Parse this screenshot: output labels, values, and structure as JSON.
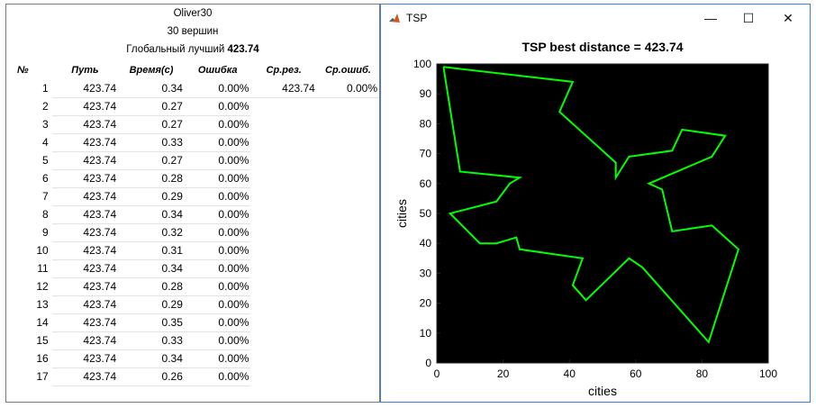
{
  "table_panel": {
    "instance_name": "Oliver30",
    "vertices": "30 вершин",
    "global_best_prefix": "Глобальный лучший ",
    "global_best_value": "423.74",
    "columns": [
      "№",
      "Путь",
      "Время(с)",
      "Ошибка",
      "Ср.рез.",
      "Ср.ошиб."
    ],
    "rows": [
      {
        "n": "1",
        "path": "423.74",
        "time": "0.34",
        "err": "0.00%",
        "avg": "423.74",
        "avg_err": "0.00%"
      },
      {
        "n": "2",
        "path": "423.74",
        "time": "0.27",
        "err": "0.00%"
      },
      {
        "n": "3",
        "path": "423.74",
        "time": "0.27",
        "err": "0.00%"
      },
      {
        "n": "4",
        "path": "423.74",
        "time": "0.33",
        "err": "0.00%"
      },
      {
        "n": "5",
        "path": "423.74",
        "time": "0.27",
        "err": "0.00%"
      },
      {
        "n": "6",
        "path": "423.74",
        "time": "0.28",
        "err": "0.00%"
      },
      {
        "n": "7",
        "path": "423.74",
        "time": "0.29",
        "err": "0.00%"
      },
      {
        "n": "8",
        "path": "423.74",
        "time": "0.34",
        "err": "0.00%"
      },
      {
        "n": "9",
        "path": "423.74",
        "time": "0.32",
        "err": "0.00%"
      },
      {
        "n": "10",
        "path": "423.74",
        "time": "0.31",
        "err": "0.00%"
      },
      {
        "n": "11",
        "path": "423.74",
        "time": "0.34",
        "err": "0.00%"
      },
      {
        "n": "12",
        "path": "423.74",
        "time": "0.28",
        "err": "0.00%"
      },
      {
        "n": "13",
        "path": "423.74",
        "time": "0.29",
        "err": "0.00%"
      },
      {
        "n": "14",
        "path": "423.74",
        "time": "0.35",
        "err": "0.00%"
      },
      {
        "n": "15",
        "path": "423.74",
        "time": "0.33",
        "err": "0.00%"
      },
      {
        "n": "16",
        "path": "423.74",
        "time": "0.34",
        "err": "0.00%"
      },
      {
        "n": "17",
        "path": "423.74",
        "time": "0.26",
        "err": "0.00%"
      }
    ]
  },
  "window": {
    "title": "TSP",
    "icon": "matlab-icon",
    "minimize_glyph": "—",
    "maximize_glyph": "☐",
    "close_glyph": "✕"
  },
  "chart_data": {
    "type": "line",
    "title": "TSP best distance = 423.74",
    "xlabel": "cities",
    "ylabel": "cities",
    "xlim": [
      0,
      100
    ],
    "ylim": [
      0,
      100
    ],
    "xticks": [
      0,
      20,
      40,
      60,
      80,
      100
    ],
    "yticks": [
      0,
      10,
      20,
      30,
      40,
      50,
      60,
      70,
      80,
      90,
      100
    ],
    "background": "#000000",
    "line_color": "#00ff00",
    "grid": false,
    "tour": [
      [
        2,
        99
      ],
      [
        41,
        94
      ],
      [
        37,
        84
      ],
      [
        54,
        67
      ],
      [
        54,
        62
      ],
      [
        58,
        69
      ],
      [
        71,
        71
      ],
      [
        74,
        78
      ],
      [
        87,
        76
      ],
      [
        83,
        69
      ],
      [
        64,
        60
      ],
      [
        68,
        58
      ],
      [
        71,
        44
      ],
      [
        83,
        46
      ],
      [
        91,
        38
      ],
      [
        82,
        7
      ],
      [
        62,
        32
      ],
      [
        58,
        35
      ],
      [
        45,
        21
      ],
      [
        41,
        26
      ],
      [
        44,
        35
      ],
      [
        25,
        38
      ],
      [
        24,
        42
      ],
      [
        18,
        40
      ],
      [
        13,
        40
      ],
      [
        4,
        50
      ],
      [
        18,
        54
      ],
      [
        22,
        60
      ],
      [
        25,
        62
      ],
      [
        7,
        64
      ],
      [
        2,
        99
      ]
    ]
  }
}
